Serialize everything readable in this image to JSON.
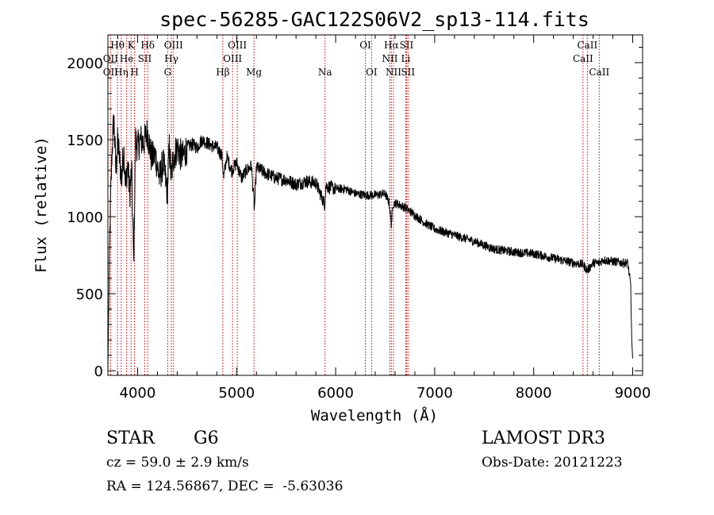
{
  "chart_data": {
    "type": "line",
    "title": "spec-56285-GAC122S06V2_sp13-114.fits",
    "xlabel": "Wavelength (Å)",
    "ylabel": "Flux (relative)",
    "xlim": [
      3700,
      9100
    ],
    "ylim": [
      -30,
      2180
    ],
    "xticks": [
      4000,
      5000,
      6000,
      7000,
      8000,
      9000
    ],
    "yticks": [
      0,
      500,
      1000,
      1500,
      2000
    ],
    "grid": false,
    "series": [
      {
        "name": "flux",
        "x": [
          3700,
          3720,
          3740,
          3760,
          3780,
          3800,
          3820,
          3840,
          3860,
          3880,
          3900,
          3920,
          3940,
          3960,
          3980,
          4000,
          4030,
          4060,
          4100,
          4140,
          4180,
          4220,
          4260,
          4300,
          4320,
          4340,
          4360,
          4400,
          4450,
          4500,
          4550,
          4600,
          4650,
          4700,
          4750,
          4800,
          4850,
          4870,
          4900,
          4950,
          5000,
          5050,
          5100,
          5150,
          5180,
          5200,
          5250,
          5300,
          5400,
          5500,
          5600,
          5700,
          5800,
          5890,
          5900,
          6000,
          6100,
          6200,
          6300,
          6400,
          6500,
          6540,
          6563,
          6580,
          6600,
          6700,
          6800,
          6900,
          7000,
          7200,
          7400,
          7600,
          7800,
          8000,
          8200,
          8400,
          8498,
          8542,
          8600,
          8662,
          8700,
          8800,
          8900,
          8950,
          8980,
          8990,
          9000
        ],
        "values": [
          0,
          900,
          1400,
          1650,
          1300,
          1500,
          1350,
          1250,
          1450,
          1200,
          1350,
          1150,
          1300,
          700,
          1500,
          1450,
          1500,
          1480,
          1550,
          1380,
          1400,
          1250,
          1350,
          1150,
          1450,
          1250,
          1380,
          1450,
          1380,
          1450,
          1470,
          1450,
          1500,
          1480,
          1460,
          1450,
          1400,
          1250,
          1390,
          1300,
          1350,
          1250,
          1300,
          1330,
          1050,
          1320,
          1300,
          1280,
          1250,
          1240,
          1210,
          1230,
          1220,
          1080,
          1200,
          1180,
          1180,
          1150,
          1140,
          1140,
          1150,
          1090,
          950,
          1080,
          1090,
          1060,
          1010,
          960,
          920,
          880,
          840,
          790,
          770,
          760,
          730,
          700,
          690,
          650,
          700,
          700,
          720,
          710,
          700,
          700,
          550,
          200,
          80
        ]
      }
    ],
    "lines": {
      "row1": [
        {
          "label": "Hθ",
          "x": 3797
        },
        {
          "label": "K",
          "x": 3934
        },
        {
          "label": "Hδ",
          "x": 4102
        },
        {
          "label": "OIII",
          "x": 4363
        },
        {
          "label": "OIII",
          "x": 5007
        },
        {
          "label": "OI",
          "x": 6300
        },
        {
          "label": "Hα",
          "x": 6563
        },
        {
          "label": "SII",
          "x": 6716
        },
        {
          "label": "CaII",
          "x": 8542
        }
      ],
      "row2": [
        {
          "label": "OII",
          "x": 3727
        },
        {
          "label": "He",
          "x": 3889
        },
        {
          "label": "SII",
          "x": 4072
        },
        {
          "label": "Hγ",
          "x": 4341
        },
        {
          "label": "OIII",
          "x": 4959
        },
        {
          "label": "NII",
          "x": 6548
        },
        {
          "label": "Li",
          "x": 6708
        },
        {
          "label": "CaII",
          "x": 8498
        }
      ],
      "row3": [
        {
          "label": "OII",
          "x": 3727
        },
        {
          "label": "Hη",
          "x": 3835
        },
        {
          "label": "H",
          "x": 3969
        },
        {
          "label": "G",
          "x": 4304
        },
        {
          "label": "Hβ",
          "x": 4861
        },
        {
          "label": "Mg",
          "x": 5175
        },
        {
          "label": "Na",
          "x": 5893
        },
        {
          "label": "OI",
          "x": 6363
        },
        {
          "label": "NII",
          "x": 6584
        },
        {
          "label": "SII",
          "x": 6731
        },
        {
          "label": "CaII",
          "x": 8662
        }
      ]
    }
  },
  "info": {
    "class": "STAR",
    "subclass": "G6",
    "survey": "LAMOST DR3",
    "cz": "cz = 59.0 ± 2.9 km/s",
    "obs_date": "Obs-Date: 20121223",
    "radec": "RA = 124.56867, DEC =  -5.63036"
  },
  "colors": {
    "line_marker": "#cc0000",
    "spectrum": "#000000",
    "axes": "#000000"
  }
}
